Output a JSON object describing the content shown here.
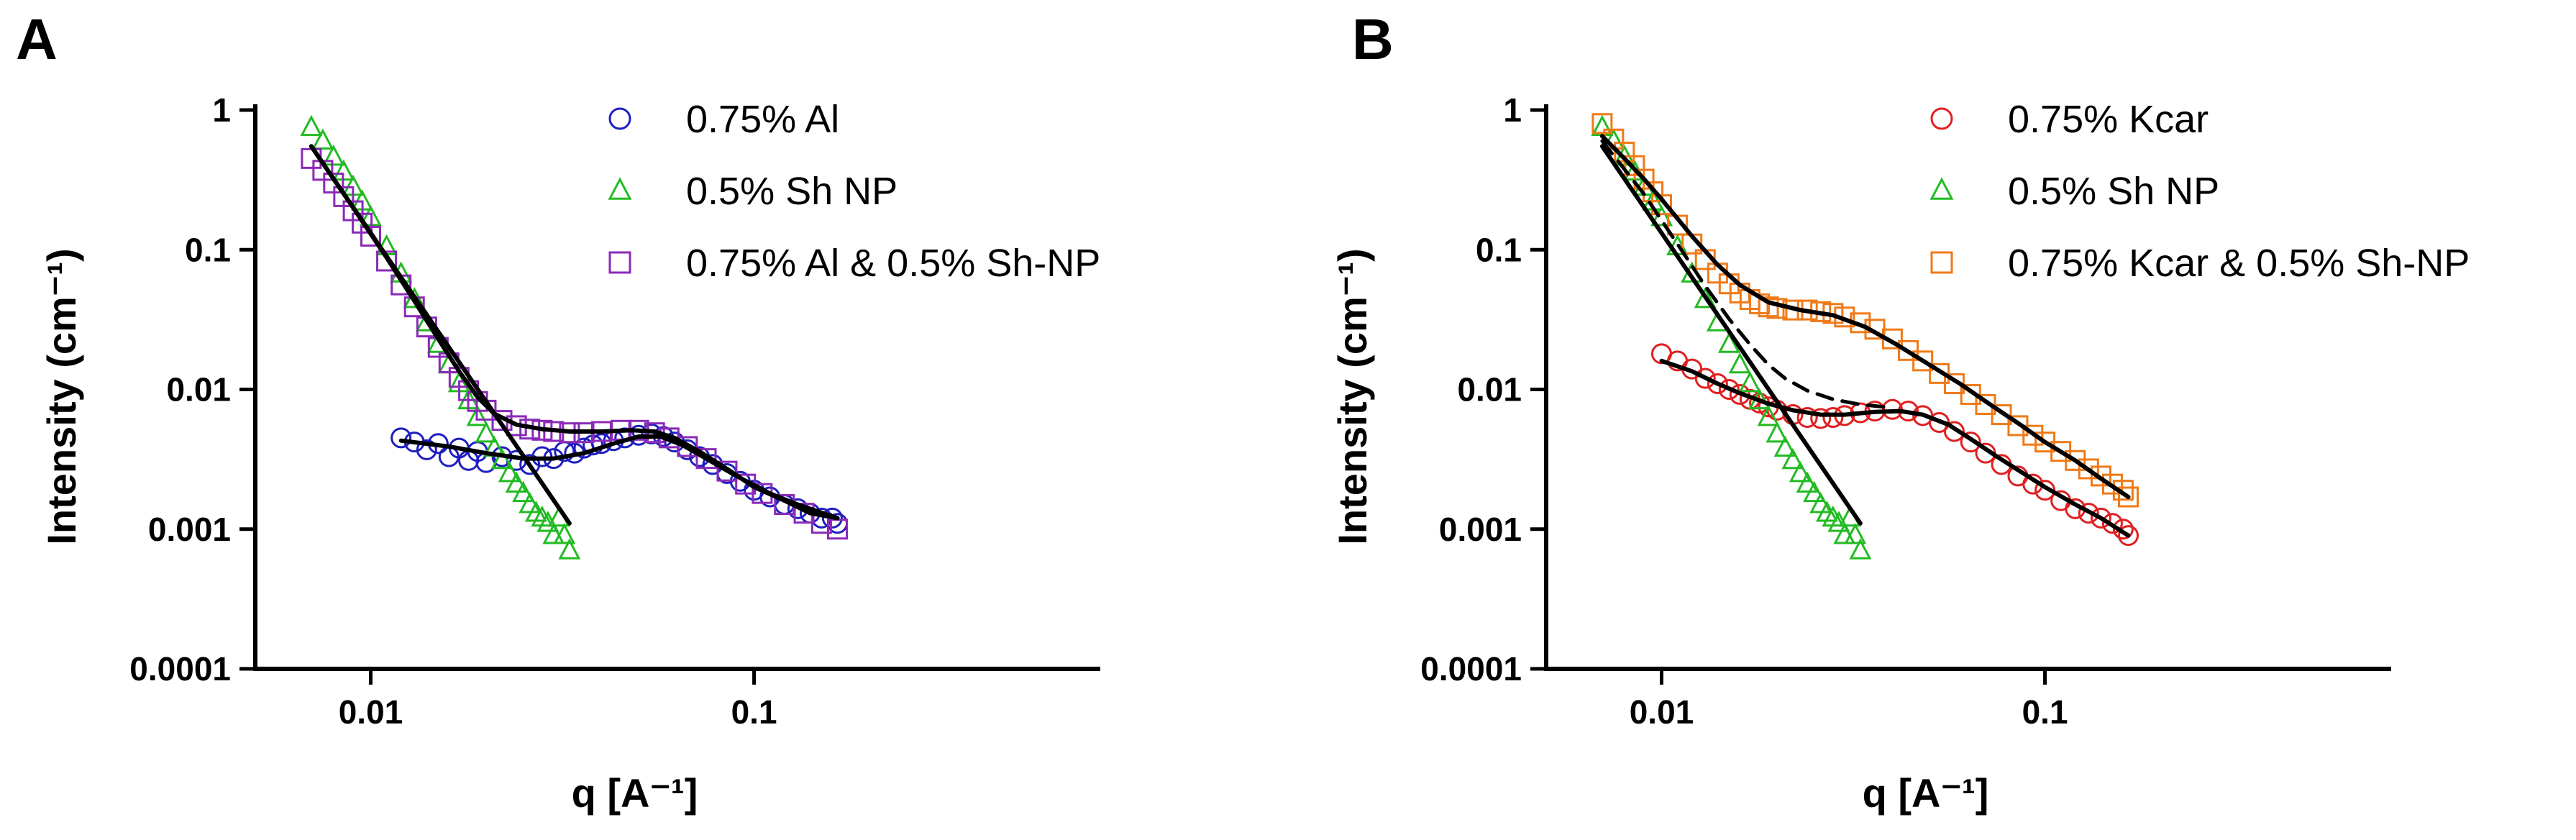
{
  "chart_data": [
    {
      "panel": "A",
      "type": "scatter",
      "xscale": "log",
      "yscale": "log",
      "xlim": [
        0.005,
        0.8
      ],
      "ylim": [
        0.0001,
        1
      ],
      "xticks": [
        0.01,
        0.1
      ],
      "xtick_labels": [
        "0.01",
        "0.1"
      ],
      "yticks": [
        1,
        0.1,
        0.01,
        0.001,
        0.0001
      ],
      "ytick_labels": [
        "1",
        "0.1",
        "0.01",
        "0.001",
        "0.0001"
      ],
      "xlabel": "q [A⁻¹]",
      "ylabel": "Intensity (cm⁻¹)",
      "legend_position": "top-right",
      "series": [
        {
          "name": "0.75% Al",
          "marker": "circle",
          "color": "#1f1fbf",
          "x": [
            0.012,
            0.013,
            0.014,
            0.015,
            0.016,
            0.017,
            0.018,
            0.019,
            0.02,
            0.022,
            0.024,
            0.026,
            0.028,
            0.03,
            0.032,
            0.034,
            0.036,
            0.038,
            0.04,
            0.043,
            0.046,
            0.05,
            0.054,
            0.058,
            0.062,
            0.067,
            0.072,
            0.078,
            0.085,
            0.092,
            0.1,
            0.11,
            0.12,
            0.13,
            0.14,
            0.15,
            0.16,
            0.165
          ],
          "y": [
            0.0045,
            0.0042,
            0.0037,
            0.0041,
            0.0033,
            0.0038,
            0.0031,
            0.0036,
            0.003,
            0.0033,
            0.0031,
            0.0029,
            0.0033,
            0.0032,
            0.0036,
            0.0035,
            0.0038,
            0.004,
            0.0041,
            0.0043,
            0.0045,
            0.0047,
            0.0048,
            0.0046,
            0.0042,
            0.0037,
            0.0033,
            0.0029,
            0.0025,
            0.0022,
            0.0019,
            0.0017,
            0.0015,
            0.0014,
            0.0013,
            0.0012,
            0.0012,
            0.0011
          ]
        },
        {
          "name": "0.5% Sh NP",
          "marker": "triangle",
          "color": "#22bb22",
          "x": [
            0.007,
            0.0075,
            0.008,
            0.0085,
            0.009,
            0.0095,
            0.01,
            0.011,
            0.012,
            0.013,
            0.014,
            0.015,
            0.016,
            0.017,
            0.018,
            0.019,
            0.02,
            0.021,
            0.022,
            0.023,
            0.024,
            0.025,
            0.026,
            0.027,
            0.028,
            0.029,
            0.03,
            0.031,
            0.032,
            0.033
          ],
          "y": [
            0.75,
            0.6,
            0.46,
            0.36,
            0.28,
            0.22,
            0.17,
            0.105,
            0.067,
            0.044,
            0.03,
            0.021,
            0.015,
            0.011,
            0.0083,
            0.0063,
            0.0048,
            0.0038,
            0.0031,
            0.0025,
            0.0021,
            0.0018,
            0.0015,
            0.0013,
            0.0012,
            0.0011,
            0.0009,
            0.0012,
            0.0009,
            0.0007
          ]
        },
        {
          "name": "0.75% Al & 0.5% Sh-NP",
          "marker": "square",
          "color": "#8a2ab8",
          "x": [
            0.007,
            0.0075,
            0.008,
            0.0085,
            0.009,
            0.0095,
            0.01,
            0.011,
            0.012,
            0.013,
            0.014,
            0.015,
            0.016,
            0.017,
            0.018,
            0.019,
            0.02,
            0.022,
            0.024,
            0.026,
            0.028,
            0.03,
            0.033,
            0.036,
            0.04,
            0.045,
            0.05,
            0.055,
            0.06,
            0.067,
            0.075,
            0.085,
            0.095,
            0.105,
            0.12,
            0.135,
            0.15,
            0.165
          ],
          "y": [
            0.45,
            0.37,
            0.3,
            0.24,
            0.19,
            0.155,
            0.125,
            0.083,
            0.056,
            0.039,
            0.028,
            0.02,
            0.0155,
            0.0122,
            0.0098,
            0.0082,
            0.0071,
            0.006,
            0.0055,
            0.0052,
            0.0051,
            0.005,
            0.0049,
            0.0049,
            0.005,
            0.0051,
            0.0051,
            0.0049,
            0.0045,
            0.0039,
            0.0032,
            0.0026,
            0.0021,
            0.0018,
            0.0015,
            0.0013,
            0.0011,
            0.001
          ]
        }
      ],
      "fit_lines": [
        {
          "name": "0.5% Sh NP fit",
          "style": "solid",
          "x": [
            0.007,
            0.033
          ],
          "y": [
            0.55,
            0.0011
          ]
        },
        {
          "name": "0.75% Al fit",
          "style": "solid",
          "x": [
            0.012,
            0.016,
            0.02,
            0.025,
            0.03,
            0.036,
            0.043,
            0.05,
            0.057,
            0.065,
            0.075,
            0.09,
            0.11,
            0.13,
            0.165
          ],
          "y": [
            0.0043,
            0.0039,
            0.0035,
            0.0032,
            0.0032,
            0.0035,
            0.0041,
            0.0046,
            0.0046,
            0.004,
            0.0032,
            0.0024,
            0.0018,
            0.0015,
            0.0012
          ]
        },
        {
          "name": "0.75% Al & 0.5% Sh-NP fit",
          "style": "solid",
          "x": [
            0.007,
            0.009,
            0.011,
            0.013,
            0.015,
            0.017,
            0.019,
            0.021,
            0.024,
            0.028,
            0.033,
            0.04,
            0.048,
            0.055,
            0.062,
            0.072,
            0.085,
            0.1,
            0.12,
            0.14,
            0.165
          ],
          "y": [
            0.55,
            0.2,
            0.088,
            0.043,
            0.023,
            0.0135,
            0.0088,
            0.0067,
            0.0056,
            0.0052,
            0.005,
            0.005,
            0.0051,
            0.005,
            0.0045,
            0.0036,
            0.0027,
            0.002,
            0.0016,
            0.0013,
            0.0012
          ]
        }
      ]
    },
    {
      "panel": "B",
      "type": "scatter",
      "xscale": "log",
      "yscale": "log",
      "xlim": [
        0.005,
        0.8
      ],
      "ylim": [
        0.0001,
        1
      ],
      "xticks": [
        0.01,
        0.1
      ],
      "xtick_labels": [
        "0.01",
        "0.1"
      ],
      "yticks": [
        1,
        0.1,
        0.01,
        0.001,
        0.0001
      ],
      "ytick_labels": [
        "1",
        "0.1",
        "0.01",
        "0.001",
        "0.0001"
      ],
      "xlabel": "q [A⁻¹]",
      "ylabel": "Intensity (cm⁻¹)",
      "legend_position": "top-right",
      "series": [
        {
          "name": "0.75% Kcar",
          "marker": "circle",
          "color": "#e02020",
          "x": [
            0.01,
            0.011,
            0.012,
            0.013,
            0.014,
            0.015,
            0.016,
            0.017,
            0.018,
            0.019,
            0.02,
            0.022,
            0.024,
            0.026,
            0.028,
            0.03,
            0.033,
            0.036,
            0.04,
            0.044,
            0.048,
            0.053,
            0.058,
            0.064,
            0.07,
            0.077,
            0.085,
            0.093,
            0.1,
            0.11,
            0.12,
            0.13,
            0.14,
            0.15,
            0.16,
            0.165
          ],
          "y": [
            0.018,
            0.016,
            0.014,
            0.012,
            0.011,
            0.01,
            0.0092,
            0.0085,
            0.008,
            0.0075,
            0.0071,
            0.0066,
            0.0063,
            0.0062,
            0.0063,
            0.0065,
            0.0068,
            0.007,
            0.0072,
            0.007,
            0.0065,
            0.0058,
            0.005,
            0.0042,
            0.0035,
            0.0029,
            0.0024,
            0.0021,
            0.0019,
            0.0016,
            0.0014,
            0.0013,
            0.0012,
            0.0011,
            0.001,
            0.0009
          ]
        },
        {
          "name": "0.5% Sh NP",
          "marker": "triangle",
          "color": "#22bb22",
          "x": [
            0.007,
            0.0075,
            0.008,
            0.0085,
            0.009,
            0.0095,
            0.01,
            0.011,
            0.012,
            0.013,
            0.014,
            0.015,
            0.016,
            0.017,
            0.018,
            0.019,
            0.02,
            0.021,
            0.022,
            0.023,
            0.024,
            0.025,
            0.026,
            0.027,
            0.028,
            0.029,
            0.03,
            0.031,
            0.032,
            0.033
          ],
          "y": [
            0.75,
            0.6,
            0.46,
            0.36,
            0.28,
            0.22,
            0.17,
            0.105,
            0.067,
            0.044,
            0.03,
            0.021,
            0.015,
            0.011,
            0.0083,
            0.0063,
            0.0048,
            0.0038,
            0.0031,
            0.0025,
            0.0021,
            0.0018,
            0.0015,
            0.0013,
            0.0012,
            0.0011,
            0.0009,
            0.0012,
            0.0009,
            0.0007
          ]
        },
        {
          "name": "0.75% Kcar & 0.5% Sh-NP",
          "marker": "square",
          "color": "#f07a18",
          "x": [
            0.007,
            0.0075,
            0.008,
            0.0085,
            0.009,
            0.0095,
            0.01,
            0.011,
            0.012,
            0.013,
            0.014,
            0.015,
            0.016,
            0.017,
            0.018,
            0.019,
            0.02,
            0.022,
            0.024,
            0.026,
            0.028,
            0.03,
            0.033,
            0.036,
            0.04,
            0.044,
            0.048,
            0.053,
            0.058,
            0.064,
            0.07,
            0.077,
            0.085,
            0.093,
            0.1,
            0.11,
            0.12,
            0.13,
            0.14,
            0.15,
            0.16,
            0.165
          ],
          "y": [
            0.8,
            0.62,
            0.5,
            0.4,
            0.32,
            0.26,
            0.21,
            0.15,
            0.11,
            0.085,
            0.068,
            0.057,
            0.049,
            0.044,
            0.041,
            0.039,
            0.038,
            0.037,
            0.037,
            0.036,
            0.035,
            0.033,
            0.03,
            0.027,
            0.023,
            0.019,
            0.016,
            0.013,
            0.011,
            0.0092,
            0.0078,
            0.0066,
            0.0055,
            0.0047,
            0.0042,
            0.0036,
            0.0031,
            0.0027,
            0.0024,
            0.0021,
            0.0019,
            0.0017
          ]
        }
      ],
      "fit_lines": [
        {
          "name": "0.5% Sh NP fit",
          "style": "solid",
          "x": [
            0.007,
            0.033
          ],
          "y": [
            0.55,
            0.0011
          ]
        },
        {
          "name": "sum of components",
          "style": "dashed",
          "x": [
            0.007,
            0.009,
            0.011,
            0.013,
            0.015,
            0.017,
            0.019,
            0.021,
            0.024,
            0.028,
            0.033,
            0.04
          ],
          "y": [
            0.6,
            0.25,
            0.11,
            0.055,
            0.032,
            0.021,
            0.015,
            0.012,
            0.0098,
            0.0085,
            0.0078,
            0.0074
          ]
        },
        {
          "name": "0.75% Kcar fit",
          "style": "solid",
          "x": [
            0.01,
            0.012,
            0.014,
            0.016,
            0.019,
            0.022,
            0.026,
            0.03,
            0.036,
            0.042,
            0.048,
            0.056,
            0.065,
            0.075,
            0.088,
            0.1,
            0.12,
            0.14,
            0.165
          ],
          "y": [
            0.016,
            0.0135,
            0.011,
            0.0094,
            0.0079,
            0.0071,
            0.0066,
            0.0066,
            0.0069,
            0.007,
            0.0066,
            0.0056,
            0.0043,
            0.0033,
            0.0025,
            0.002,
            0.0015,
            0.0012,
            0.0009
          ]
        },
        {
          "name": "0.75% Kcar & 0.5% Sh-NP fit",
          "style": "solid",
          "x": [
            0.007,
            0.008,
            0.009,
            0.01,
            0.012,
            0.014,
            0.016,
            0.019,
            0.023,
            0.028,
            0.034,
            0.041,
            0.05,
            0.06,
            0.072,
            0.087,
            0.1,
            0.12,
            0.14,
            0.165
          ],
          "y": [
            0.65,
            0.45,
            0.32,
            0.23,
            0.125,
            0.078,
            0.056,
            0.042,
            0.037,
            0.034,
            0.028,
            0.021,
            0.015,
            0.011,
            0.0078,
            0.0055,
            0.0042,
            0.0031,
            0.0023,
            0.0017
          ]
        }
      ]
    }
  ]
}
